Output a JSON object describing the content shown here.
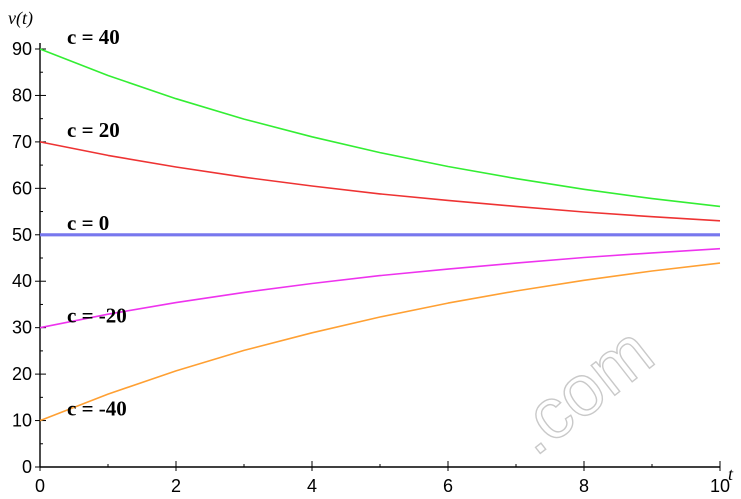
{
  "chart_data": {
    "type": "line",
    "title": "",
    "xlabel": "t",
    "ylabel": "v(t)",
    "xlim": [
      0,
      10
    ],
    "ylim": [
      0,
      90
    ],
    "x_ticks": [
      0,
      2,
      4,
      6,
      8,
      10
    ],
    "y_ticks": [
      0,
      10,
      20,
      30,
      40,
      50,
      60,
      70,
      80,
      90
    ],
    "grid": false,
    "x": [
      0,
      1,
      2,
      3,
      4,
      5,
      6,
      7,
      8,
      9,
      10
    ],
    "series": [
      {
        "name": "c = 40",
        "color": "#33ee33",
        "values": [
          90,
          84.3,
          79.3,
          74.9,
          71.1,
          67.7,
          64.7,
          62.1,
          59.8,
          57.8,
          56.1
        ]
      },
      {
        "name": "c = 20",
        "color": "#ee3333",
        "values": [
          70,
          67.1,
          64.6,
          62.4,
          60.5,
          58.8,
          57.4,
          56.1,
          54.9,
          53.9,
          53.0
        ]
      },
      {
        "name": "c = 0",
        "color": "#7777ee",
        "values": [
          50,
          50,
          50,
          50,
          50,
          50,
          50,
          50,
          50,
          50,
          50
        ]
      },
      {
        "name": "c = -20",
        "color": "#ee33ee",
        "values": [
          30,
          32.9,
          35.4,
          37.6,
          39.5,
          41.2,
          42.6,
          43.9,
          45.1,
          46.1,
          47.0
        ]
      },
      {
        "name": "c = -40",
        "color": "#ffa033",
        "values": [
          10,
          15.7,
          20.7,
          25.1,
          28.9,
          32.3,
          35.3,
          37.9,
          40.2,
          42.2,
          43.9
        ]
      }
    ]
  },
  "watermark_text": ".com"
}
